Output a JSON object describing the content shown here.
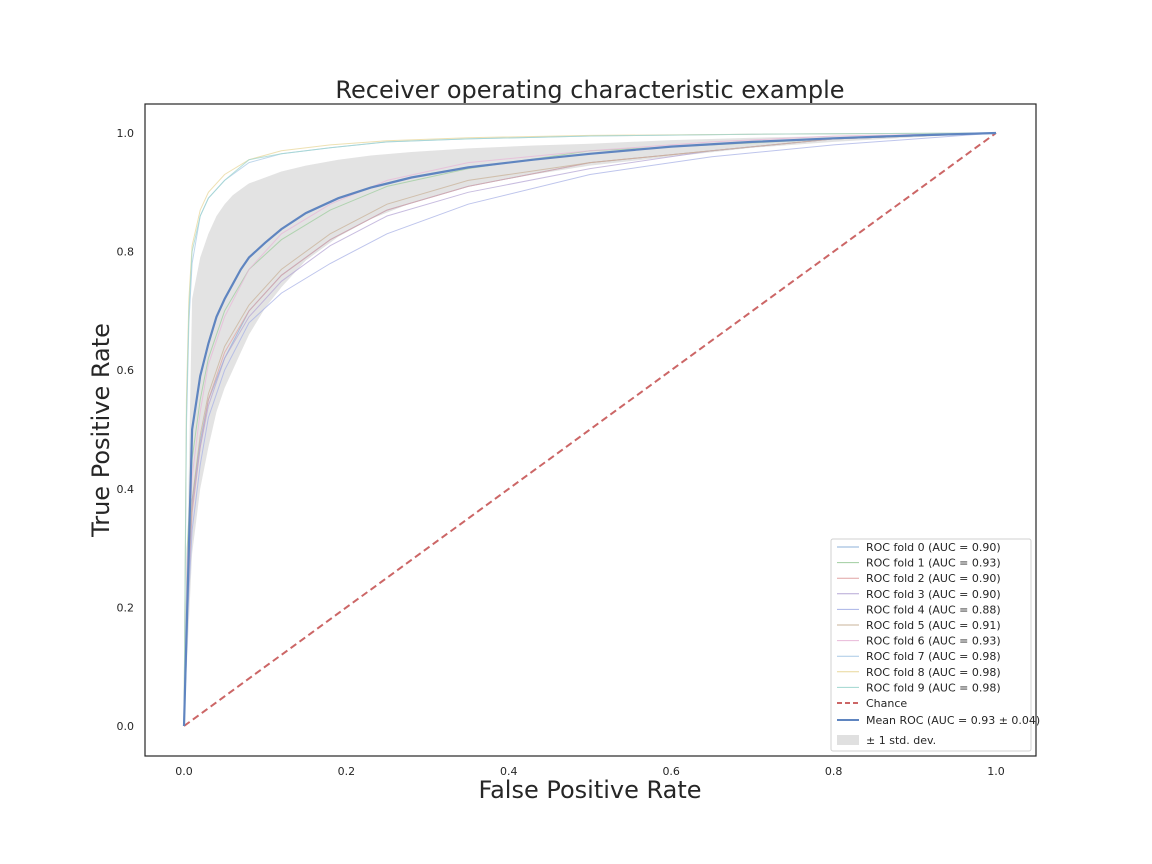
{
  "chart_data": {
    "type": "line",
    "title": "Receiver operating characteristic example",
    "xlabel": "False Positive Rate",
    "ylabel": "True Positive Rate",
    "xlim": [
      -0.05,
      1.05
    ],
    "ylim": [
      -0.05,
      1.05
    ],
    "xticks": [
      "0.0",
      "0.2",
      "0.4",
      "0.6",
      "0.8",
      "1.0"
    ],
    "yticks": [
      "0.0",
      "0.2",
      "0.4",
      "0.6",
      "0.8",
      "1.0"
    ],
    "grid": false,
    "legend_position": "lower-right",
    "folds": [
      {
        "name": "ROC fold 0 (AUC = 0.90)",
        "color": "#8eb0d8",
        "x": [
          0,
          0.005,
          0.01,
          0.02,
          0.03,
          0.05,
          0.08,
          0.12,
          0.18,
          0.25,
          0.35,
          0.5,
          0.65,
          0.8,
          1.0
        ],
        "y": [
          0,
          0.25,
          0.38,
          0.48,
          0.55,
          0.62,
          0.7,
          0.76,
          0.82,
          0.87,
          0.91,
          0.95,
          0.97,
          0.99,
          1.0
        ]
      },
      {
        "name": "ROC fold 1 (AUC = 0.93)",
        "color": "#9fcd9f",
        "x": [
          0,
          0.004,
          0.01,
          0.02,
          0.03,
          0.05,
          0.08,
          0.12,
          0.18,
          0.25,
          0.35,
          0.5,
          0.65,
          0.8,
          1.0
        ],
        "y": [
          0,
          0.3,
          0.45,
          0.55,
          0.62,
          0.7,
          0.77,
          0.82,
          0.87,
          0.91,
          0.94,
          0.97,
          0.98,
          0.99,
          1.0
        ]
      },
      {
        "name": "ROC fold 2 (AUC = 0.90)",
        "color": "#e0a3a3",
        "x": [
          0,
          0.005,
          0.01,
          0.02,
          0.03,
          0.05,
          0.08,
          0.12,
          0.18,
          0.25,
          0.35,
          0.5,
          0.65,
          0.8,
          1.0
        ],
        "y": [
          0,
          0.22,
          0.36,
          0.47,
          0.55,
          0.63,
          0.7,
          0.76,
          0.82,
          0.87,
          0.91,
          0.95,
          0.97,
          0.99,
          1.0
        ]
      },
      {
        "name": "ROC fold 3 (AUC = 0.90)",
        "color": "#b6a7d6",
        "x": [
          0,
          0.005,
          0.01,
          0.02,
          0.03,
          0.05,
          0.08,
          0.12,
          0.18,
          0.25,
          0.35,
          0.5,
          0.65,
          0.8,
          1.0
        ],
        "y": [
          0,
          0.24,
          0.37,
          0.47,
          0.54,
          0.62,
          0.69,
          0.75,
          0.81,
          0.86,
          0.9,
          0.94,
          0.97,
          0.99,
          1.0
        ]
      },
      {
        "name": "ROC fold 4 (AUC = 0.88)",
        "color": "#a8b2e6",
        "x": [
          0,
          0.005,
          0.01,
          0.02,
          0.03,
          0.05,
          0.08,
          0.12,
          0.18,
          0.25,
          0.35,
          0.5,
          0.65,
          0.8,
          1.0
        ],
        "y": [
          0,
          0.2,
          0.33,
          0.44,
          0.52,
          0.6,
          0.68,
          0.73,
          0.78,
          0.83,
          0.88,
          0.93,
          0.96,
          0.98,
          1.0
        ]
      },
      {
        "name": "ROC fold 5 (AUC = 0.91)",
        "color": "#c9b39a",
        "x": [
          0,
          0.005,
          0.01,
          0.02,
          0.03,
          0.05,
          0.08,
          0.12,
          0.18,
          0.25,
          0.35,
          0.5,
          0.65,
          0.8,
          1.0
        ],
        "y": [
          0,
          0.25,
          0.38,
          0.49,
          0.56,
          0.64,
          0.71,
          0.77,
          0.83,
          0.88,
          0.92,
          0.95,
          0.97,
          0.99,
          1.0
        ]
      },
      {
        "name": "ROC fold 6 (AUC = 0.93)",
        "color": "#e8b8d8",
        "x": [
          0,
          0.004,
          0.01,
          0.02,
          0.03,
          0.05,
          0.08,
          0.12,
          0.18,
          0.25,
          0.35,
          0.5,
          0.65,
          0.8,
          1.0
        ],
        "y": [
          0,
          0.28,
          0.42,
          0.53,
          0.61,
          0.69,
          0.77,
          0.83,
          0.88,
          0.92,
          0.95,
          0.97,
          0.985,
          0.995,
          1.0
        ]
      },
      {
        "name": "ROC fold 7 (AUC = 0.98)",
        "color": "#a9c9e6",
        "x": [
          0,
          0.003,
          0.006,
          0.01,
          0.02,
          0.03,
          0.05,
          0.08,
          0.12,
          0.18,
          0.25,
          0.35,
          0.5,
          0.7,
          1.0
        ],
        "y": [
          0,
          0.5,
          0.68,
          0.78,
          0.86,
          0.89,
          0.92,
          0.95,
          0.965,
          0.975,
          0.985,
          0.99,
          0.995,
          0.998,
          1.0
        ]
      },
      {
        "name": "ROC fold 8 (AUC = 0.98)",
        "color": "#e8d79a",
        "x": [
          0,
          0.003,
          0.006,
          0.01,
          0.02,
          0.03,
          0.05,
          0.08,
          0.12,
          0.18,
          0.25,
          0.35,
          0.5,
          0.7,
          1.0
        ],
        "y": [
          0,
          0.55,
          0.72,
          0.81,
          0.87,
          0.9,
          0.93,
          0.955,
          0.97,
          0.98,
          0.987,
          0.992,
          0.996,
          0.998,
          1.0
        ]
      },
      {
        "name": "ROC fold 9 (AUC = 0.98)",
        "color": "#9fd6cf",
        "x": [
          0,
          0.003,
          0.006,
          0.01,
          0.02,
          0.03,
          0.05,
          0.08,
          0.12,
          0.18,
          0.25,
          0.35,
          0.5,
          0.7,
          1.0
        ],
        "y": [
          0,
          0.52,
          0.7,
          0.8,
          0.86,
          0.89,
          0.92,
          0.955,
          0.965,
          0.975,
          0.985,
          0.99,
          0.995,
          0.998,
          1.0
        ]
      }
    ],
    "chance": {
      "name": "Chance",
      "color": "#cc6666",
      "x": [
        0,
        1
      ],
      "y": [
        0,
        1
      ]
    },
    "mean": {
      "name": "Mean ROC (AUC = 0.93 ± 0.04)",
      "color": "#5f85c0",
      "x": [
        0,
        0.01,
        0.02,
        0.03,
        0.04,
        0.05,
        0.06,
        0.07,
        0.08,
        0.1,
        0.12,
        0.15,
        0.19,
        0.23,
        0.28,
        0.35,
        0.43,
        0.5,
        0.6,
        0.7,
        0.8,
        0.9,
        1.0
      ],
      "y": [
        0,
        0.5,
        0.59,
        0.645,
        0.69,
        0.72,
        0.745,
        0.77,
        0.79,
        0.815,
        0.838,
        0.865,
        0.89,
        0.908,
        0.925,
        0.942,
        0.955,
        0.965,
        0.977,
        0.985,
        0.991,
        0.996,
        1.0
      ]
    },
    "std_band": {
      "name": "± 1 std. dev.",
      "color": "#cccccc",
      "x": [
        0,
        0.01,
        0.02,
        0.03,
        0.04,
        0.05,
        0.06,
        0.07,
        0.08,
        0.1,
        0.12,
        0.15,
        0.19,
        0.23,
        0.28,
        0.35,
        0.43,
        0.5,
        0.6,
        0.7,
        0.8,
        0.9,
        1.0
      ],
      "upper": [
        0,
        0.72,
        0.79,
        0.83,
        0.86,
        0.88,
        0.895,
        0.905,
        0.915,
        0.925,
        0.935,
        0.945,
        0.955,
        0.962,
        0.968,
        0.974,
        0.979,
        0.982,
        0.988,
        0.992,
        0.995,
        0.998,
        1.0
      ],
      "lower": [
        0,
        0.29,
        0.4,
        0.47,
        0.53,
        0.57,
        0.6,
        0.63,
        0.66,
        0.705,
        0.74,
        0.785,
        0.825,
        0.855,
        0.882,
        0.91,
        0.93,
        0.945,
        0.96,
        0.975,
        0.985,
        0.993,
        1.0
      ]
    }
  }
}
